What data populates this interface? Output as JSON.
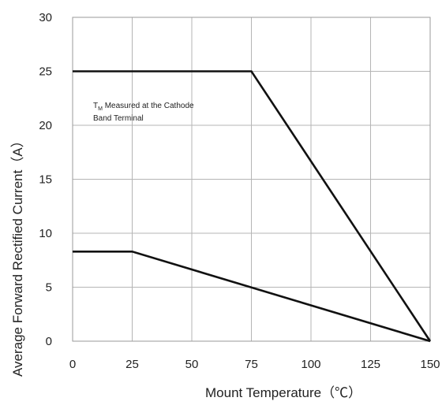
{
  "chart_data": {
    "type": "line",
    "title": "",
    "xlabel": "Mount Temperature（℃）",
    "ylabel": "Average  Forward  Rectified  Current（A）",
    "xlim": [
      0,
      150
    ],
    "ylim": [
      0,
      30
    ],
    "x_ticks": [
      0,
      25,
      50,
      75,
      100,
      125,
      150
    ],
    "y_ticks": [
      0,
      5,
      10,
      15,
      20,
      25,
      30
    ],
    "x_tick_labels": [
      "0",
      "25",
      "50",
      "75",
      "100",
      "125",
      "150"
    ],
    "y_tick_labels": [
      "0",
      "5",
      "10",
      "15",
      "20",
      "25",
      "30"
    ],
    "grid": true,
    "annotation": {
      "line1_prefix": "T",
      "line1_subscript": "M",
      "line1_rest": " Measured at the Cathode",
      "line2": "Band Terminal"
    },
    "series": [
      {
        "x": [
          0,
          75,
          150
        ],
        "y": [
          25,
          25,
          0
        ]
      },
      {
        "x": [
          0,
          25,
          150
        ],
        "y": [
          8.3,
          8.3,
          0
        ]
      }
    ],
    "line_color": "#111111",
    "grid_color": "#b5b5b5"
  }
}
